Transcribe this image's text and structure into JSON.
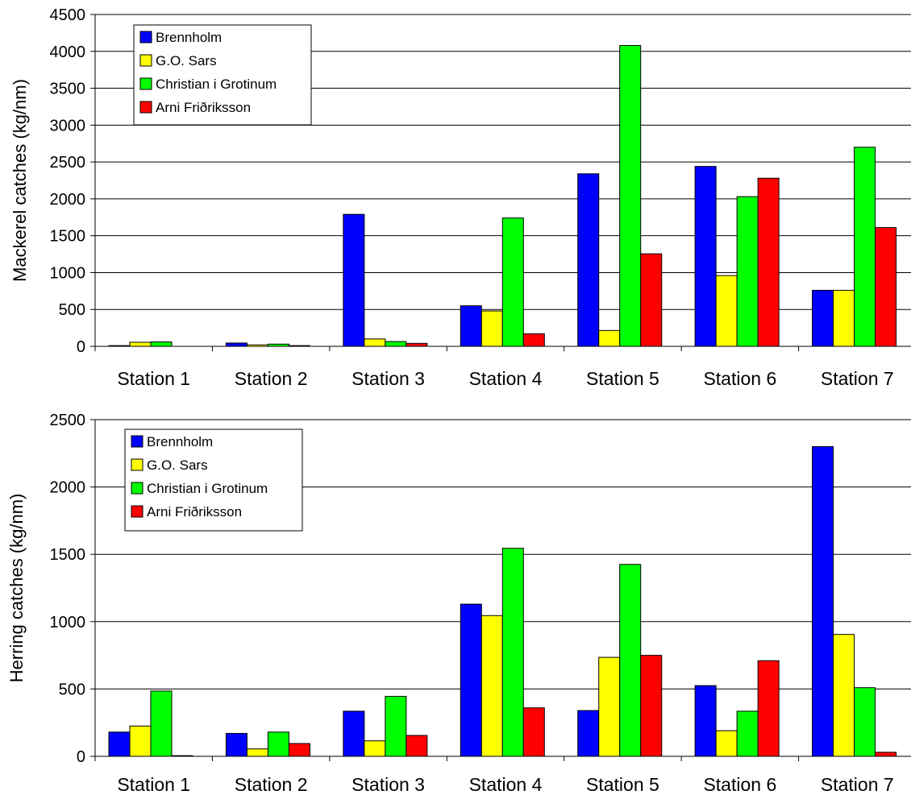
{
  "chart_data": [
    {
      "type": "bar",
      "title": "",
      "xlabel": "",
      "ylabel": "Mackerel catches (kg/nm)",
      "ylim": [
        0,
        4500
      ],
      "yticks": [
        0,
        500,
        1000,
        1500,
        2000,
        2500,
        3000,
        3500,
        4000,
        4500
      ],
      "grid": true,
      "legend_position": "top-left",
      "categories": [
        "Station 1",
        "Station 2",
        "Station 3",
        "Station 4",
        "Station 5",
        "Station 6",
        "Station 7"
      ],
      "series": [
        {
          "name": "Brennholm",
          "color": "#0000ff",
          "values": [
            10,
            45,
            1790,
            550,
            2340,
            2440,
            760
          ]
        },
        {
          "name": "G.O. Sars",
          "color": "#ffff00",
          "values": [
            55,
            20,
            100,
            480,
            215,
            960,
            760
          ]
        },
        {
          "name": "Christian i Grotinum",
          "color": "#00ff00",
          "values": [
            60,
            30,
            65,
            1740,
            4080,
            2030,
            2700
          ]
        },
        {
          "name": "Arni Friðriksson",
          "color": "#ff0000",
          "values": [
            0,
            10,
            40,
            170,
            1255,
            2280,
            1610
          ]
        }
      ]
    },
    {
      "type": "bar",
      "title": "",
      "xlabel": "",
      "ylabel": "Herring catches (kg/nm)",
      "ylim": [
        0,
        2500
      ],
      "yticks": [
        0,
        500,
        1000,
        1500,
        2000,
        2500
      ],
      "grid": true,
      "legend_position": "top-left",
      "categories": [
        "Station 1",
        "Station 2",
        "Station 3",
        "Station 4",
        "Station 5",
        "Station 6",
        "Station 7"
      ],
      "series": [
        {
          "name": "Brennholm",
          "color": "#0000ff",
          "values": [
            180,
            170,
            335,
            1130,
            340,
            525,
            2300
          ]
        },
        {
          "name": "G.O. Sars",
          "color": "#ffff00",
          "values": [
            225,
            55,
            115,
            1045,
            735,
            190,
            905
          ]
        },
        {
          "name": "Christian i Grotinum",
          "color": "#00ff00",
          "values": [
            485,
            180,
            445,
            1545,
            1425,
            335,
            510
          ]
        },
        {
          "name": "Arni Friðriksson",
          "color": "#ff0000",
          "values": [
            5,
            95,
            155,
            360,
            750,
            710,
            30
          ]
        }
      ]
    }
  ]
}
